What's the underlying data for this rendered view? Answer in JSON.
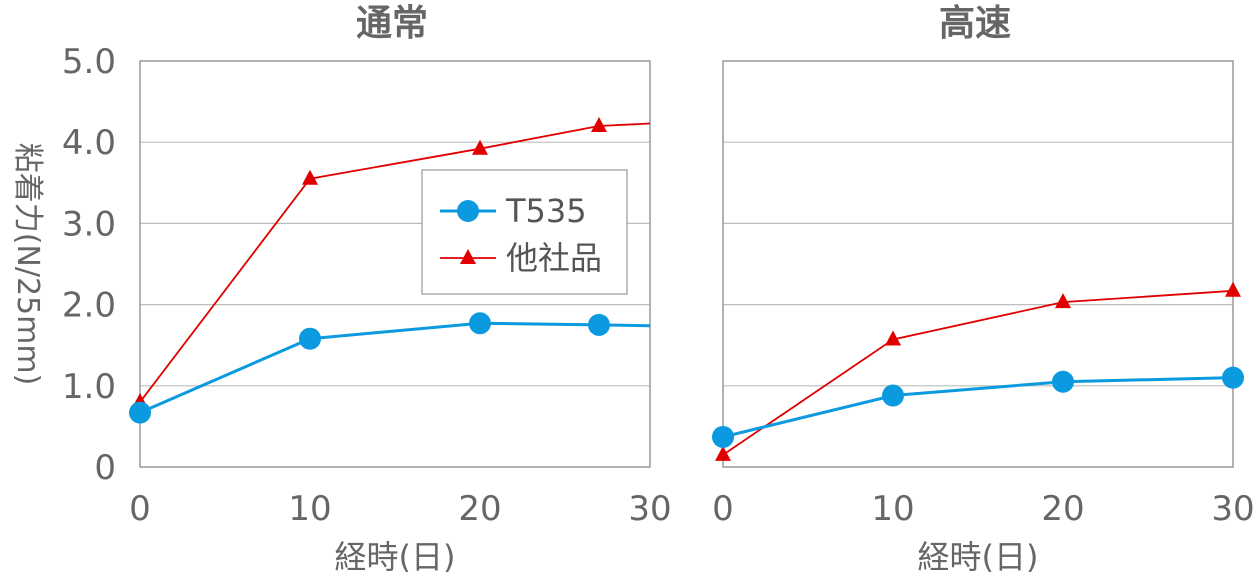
{
  "chart_data": [
    {
      "type": "line",
      "title": "通常",
      "xlabel": "経時(日)",
      "ylabel": "粘着力(N/25mm)",
      "xlim": [
        0,
        30
      ],
      "ylim": [
        0,
        5
      ],
      "x_ticks": [
        "0",
        "10",
        "20",
        "30"
      ],
      "y_ticks": [
        "0",
        "1.0",
        "2.0",
        "3.0",
        "4.0",
        "5.0"
      ],
      "grid": true,
      "legend": "center-right",
      "series": [
        {
          "name": "T535",
          "color": "#0b9ae0",
          "marker": "circle",
          "points": [
            [
              0,
              0.67
            ],
            [
              10,
              1.58
            ],
            [
              20,
              1.77
            ],
            [
              27,
              1.75
            ]
          ],
          "trend_end": [
            30,
            1.74
          ]
        },
        {
          "name": "他社品",
          "color": "#e00000",
          "marker": "triangle",
          "points": [
            [
              0,
              0.8
            ],
            [
              10,
              3.55
            ],
            [
              20,
              3.92
            ],
            [
              27,
              4.2
            ]
          ],
          "trend_end": [
            30,
            4.23
          ]
        }
      ]
    },
    {
      "type": "line",
      "title": "高速",
      "xlabel": "経時(日)",
      "ylabel": "",
      "xlim": [
        0,
        30
      ],
      "ylim": [
        0,
        5
      ],
      "x_ticks": [
        "0",
        "10",
        "20",
        "30"
      ],
      "y_ticks": [],
      "grid": true,
      "legend": "none",
      "series": [
        {
          "name": "T535",
          "color": "#0b9ae0",
          "marker": "circle",
          "points": [
            [
              0,
              0.37
            ],
            [
              10,
              0.88
            ],
            [
              20,
              1.05
            ],
            [
              30,
              1.1
            ]
          ]
        },
        {
          "name": "他社品",
          "color": "#e00000",
          "marker": "triangle",
          "points": [
            [
              0,
              0.15
            ],
            [
              10,
              1.57
            ],
            [
              20,
              2.03
            ],
            [
              30,
              2.17
            ]
          ]
        }
      ]
    }
  ]
}
